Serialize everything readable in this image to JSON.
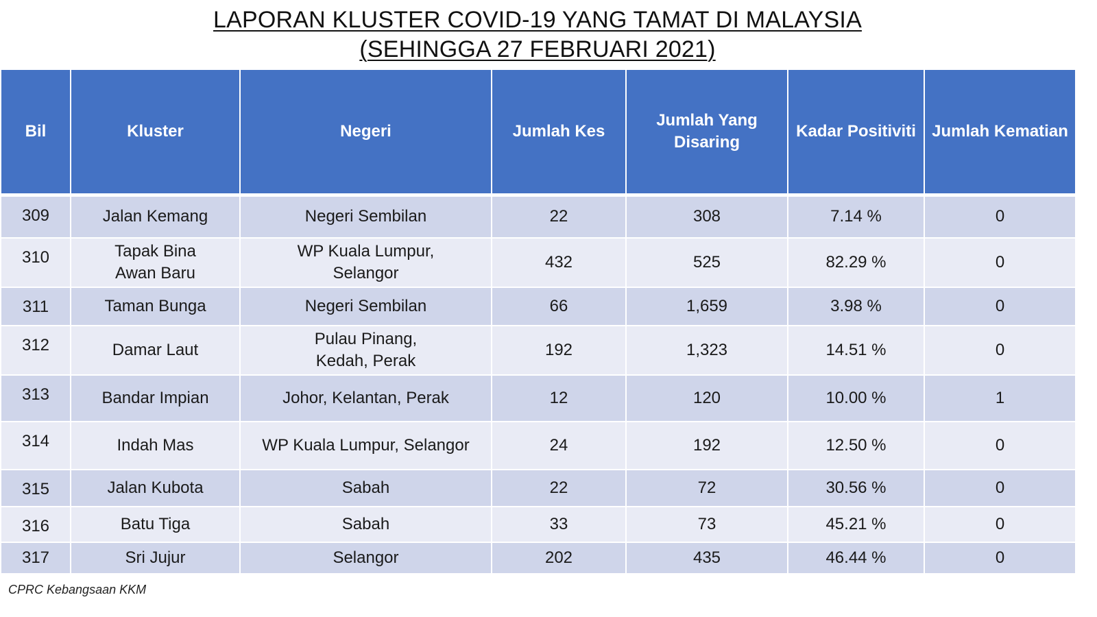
{
  "title": {
    "line1": "LAPORAN KLUSTER COVID-19 YANG TAMAT DI MALAYSIA",
    "line2": "(SEHINGGA  27 FEBRUARI 2021)"
  },
  "table": {
    "headers": [
      "Bil",
      "Kluster",
      "Negeri",
      "Jumlah Kes",
      "Jumlah Yang Disaring",
      "Kadar Positiviti",
      "Jumlah Kematian"
    ],
    "rows": [
      [
        "309",
        "Jalan Kemang",
        "Negeri Sembilan",
        "22",
        "308",
        "7.14 %",
        "0"
      ],
      [
        "310",
        "Tapak Bina Awan Baru",
        "WP Kuala Lumpur, Selangor",
        "432",
        "525",
        "82.29 %",
        "0"
      ],
      [
        "311",
        "Taman Bunga",
        "Negeri Sembilan",
        "66",
        "1,659",
        "3.98 %",
        "0"
      ],
      [
        "312",
        "Damar Laut",
        "Pulau Pinang, Kedah, Perak",
        "192",
        "1,323",
        "14.51 %",
        "0"
      ],
      [
        "313",
        "Bandar Impian",
        "Johor, Kelantan, Perak",
        "12",
        "120",
        "10.00 %",
        "1"
      ],
      [
        "314",
        "Indah Mas",
        "WP Kuala Lumpur, Selangor",
        "24",
        "192",
        "12.50 %",
        "0"
      ],
      [
        "315",
        "Jalan Kubota",
        "Sabah",
        "22",
        "72",
        "30.56 %",
        "0"
      ],
      [
        "316",
        "Batu Tiga",
        "Sabah",
        "33",
        "73",
        "45.21 %",
        "0"
      ],
      [
        "317",
        "Sri Jujur",
        "Selangor",
        "202",
        "435",
        "46.44 %",
        "0"
      ]
    ]
  },
  "colors": {
    "header": "#4472c4",
    "row_odd": "#cfd5ea",
    "row_even": "#e9ebf5"
  },
  "source": "CPRC Kebangsaan KKM"
}
